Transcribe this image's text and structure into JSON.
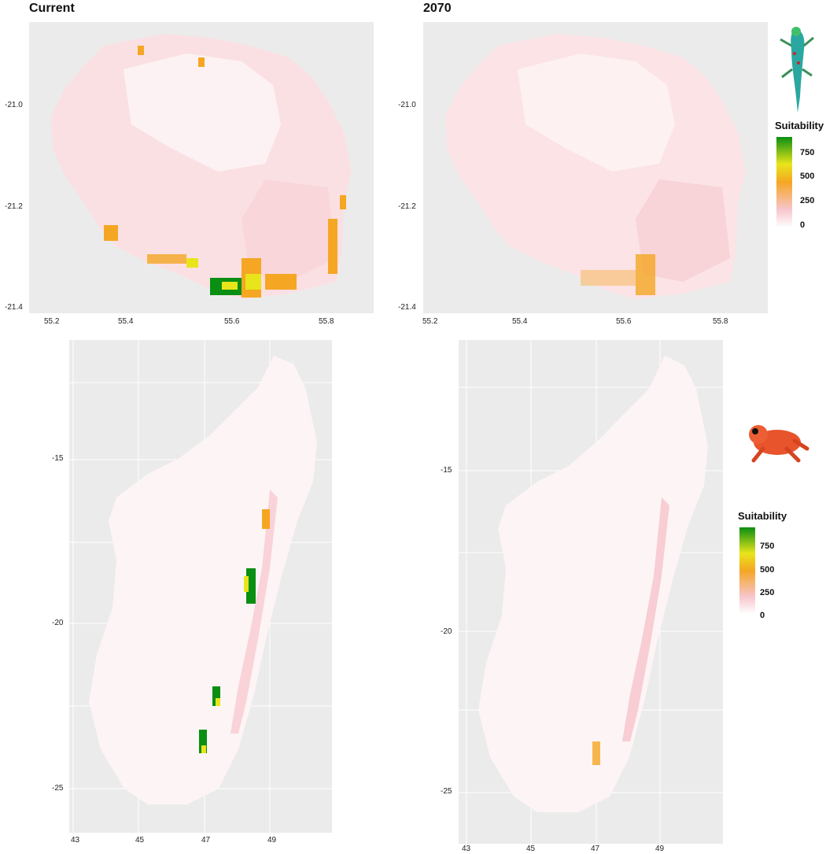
{
  "panels": {
    "reunion_current": {
      "title": "Current",
      "y_ticks": [
        "-21.0",
        "-21.2",
        "-21.4"
      ],
      "x_ticks": [
        "55.2",
        "55.4",
        "55.6",
        "55.8"
      ]
    },
    "reunion_2070": {
      "title": "2070",
      "y_ticks": [
        "-21.0",
        "-21.2",
        "-21.4"
      ],
      "x_ticks": [
        "55.2",
        "55.4",
        "55.6",
        "55.8"
      ]
    },
    "madagascar_current": {
      "y_ticks": [
        "-15",
        "-20",
        "-25"
      ],
      "x_ticks": [
        "43",
        "45",
        "47",
        "49"
      ]
    },
    "madagascar_2070": {
      "y_ticks": [
        "-15",
        "-20",
        "-25"
      ],
      "x_ticks": [
        "43",
        "45",
        "47",
        "49"
      ]
    }
  },
  "legends": {
    "gecko": {
      "title": "Suitability",
      "labels": [
        "750",
        "500",
        "250",
        "0"
      ]
    },
    "frog": {
      "title": "Suitability",
      "labels": [
        "750",
        "500",
        "250",
        "0"
      ]
    }
  },
  "colors": {
    "panel_bg": "#ebebeb",
    "land_base": "#fde8ea",
    "low": "#f7c5cc",
    "mid": "#f5a623",
    "high_yellow": "#e8e51a",
    "high": "#0a8f12"
  },
  "species_icons": [
    "gecko-icon",
    "frog-icon"
  ]
}
